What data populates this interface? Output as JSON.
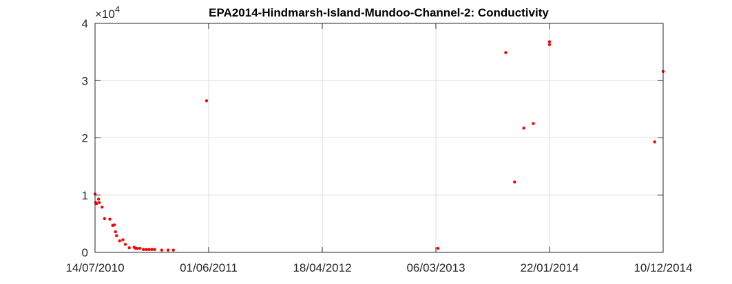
{
  "chart_data": {
    "type": "scatter",
    "title": "EPA2014-Hindmarsh-Island-Mundoo-Channel-2: Conductivity",
    "xlabel": "",
    "ylabel": "",
    "x_axis_type": "date",
    "xlim": [
      "2010-07-14",
      "2014-12-10"
    ],
    "ylim": [
      0,
      40000
    ],
    "y_exponent_label": {
      "base": "×10",
      "power": "4"
    },
    "x_ticks": [
      {
        "date": "2010-07-14",
        "label": "14/07/2010"
      },
      {
        "date": "2011-06-01",
        "label": "01/06/2011"
      },
      {
        "date": "2012-04-18",
        "label": "18/04/2012"
      },
      {
        "date": "2013-03-06",
        "label": "06/03/2013"
      },
      {
        "date": "2014-01-22",
        "label": "22/01/2014"
      },
      {
        "date": "2014-12-10",
        "label": "10/12/2014"
      }
    ],
    "y_ticks": [
      {
        "value": 0,
        "label": "0"
      },
      {
        "value": 10000,
        "label": "1"
      },
      {
        "value": 20000,
        "label": "2"
      },
      {
        "value": 30000,
        "label": "3"
      },
      {
        "value": 40000,
        "label": "4"
      }
    ],
    "grid": true,
    "legend": "none",
    "marker_color": "#ff0000",
    "series": [
      {
        "points": [
          {
            "x": "2010-07-14",
            "y": 10200
          },
          {
            "x": "2010-07-16",
            "y": 8700
          },
          {
            "x": "2010-07-18",
            "y": 8500
          },
          {
            "x": "2010-07-24",
            "y": 9300
          },
          {
            "x": "2010-07-26",
            "y": 8700
          },
          {
            "x": "2010-08-03",
            "y": 7900
          },
          {
            "x": "2010-08-10",
            "y": 5900
          },
          {
            "x": "2010-08-25",
            "y": 5800
          },
          {
            "x": "2010-09-02",
            "y": 4700
          },
          {
            "x": "2010-09-07",
            "y": 4800
          },
          {
            "x": "2010-09-10",
            "y": 3600
          },
          {
            "x": "2010-09-13",
            "y": 2900
          },
          {
            "x": "2010-09-22",
            "y": 2000
          },
          {
            "x": "2010-10-01",
            "y": 2200
          },
          {
            "x": "2010-10-08",
            "y": 1400
          },
          {
            "x": "2010-10-19",
            "y": 800
          },
          {
            "x": "2010-11-02",
            "y": 900
          },
          {
            "x": "2010-11-06",
            "y": 700
          },
          {
            "x": "2010-11-10",
            "y": 700
          },
          {
            "x": "2010-11-18",
            "y": 700
          },
          {
            "x": "2010-11-28",
            "y": 500
          },
          {
            "x": "2010-12-06",
            "y": 500
          },
          {
            "x": "2010-12-14",
            "y": 500
          },
          {
            "x": "2010-12-22",
            "y": 500
          },
          {
            "x": "2010-12-30",
            "y": 500
          },
          {
            "x": "2011-01-19",
            "y": 400
          },
          {
            "x": "2011-02-06",
            "y": 400
          },
          {
            "x": "2011-02-21",
            "y": 400
          },
          {
            "x": "2011-05-26",
            "y": 26500
          },
          {
            "x": "2013-03-12",
            "y": 700
          },
          {
            "x": "2013-09-20",
            "y": 34900
          },
          {
            "x": "2013-10-15",
            "y": 12300
          },
          {
            "x": "2013-11-10",
            "y": 21700
          },
          {
            "x": "2013-12-07",
            "y": 22500
          },
          {
            "x": "2014-01-22",
            "y": 36300
          },
          {
            "x": "2014-01-22",
            "y": 36800
          },
          {
            "x": "2014-11-16",
            "y": 19300
          },
          {
            "x": "2014-12-10",
            "y": 31600
          }
        ]
      }
    ]
  }
}
